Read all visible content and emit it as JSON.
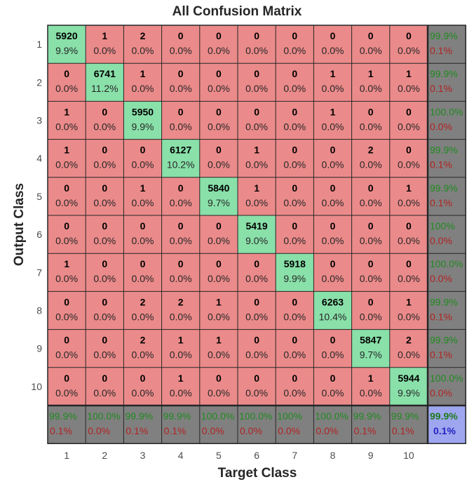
{
  "chart_data": {
    "type": "heatmap",
    "title": "All Confusion Matrix",
    "xlabel": "Target Class",
    "ylabel": "Output Class",
    "x_ticks": [
      "1",
      "2",
      "3",
      "4",
      "5",
      "6",
      "7",
      "8",
      "9",
      "10"
    ],
    "y_ticks": [
      "1",
      "2",
      "3",
      "4",
      "5",
      "6",
      "7",
      "8",
      "9",
      "10"
    ],
    "counts": [
      [
        5920,
        1,
        2,
        0,
        0,
        0,
        0,
        0,
        0,
        0
      ],
      [
        0,
        6741,
        1,
        0,
        0,
        0,
        0,
        1,
        1,
        1
      ],
      [
        1,
        0,
        5950,
        0,
        0,
        0,
        0,
        1,
        0,
        0
      ],
      [
        1,
        0,
        0,
        6127,
        0,
        1,
        0,
        0,
        2,
        0
      ],
      [
        0,
        0,
        1,
        0,
        5840,
        1,
        0,
        0,
        0,
        1
      ],
      [
        0,
        0,
        0,
        0,
        0,
        5419,
        0,
        0,
        0,
        0
      ],
      [
        1,
        0,
        0,
        0,
        0,
        0,
        5918,
        0,
        0,
        0
      ],
      [
        0,
        0,
        2,
        2,
        1,
        0,
        0,
        6263,
        0,
        1
      ],
      [
        0,
        0,
        2,
        1,
        1,
        0,
        0,
        0,
        5847,
        2
      ],
      [
        0,
        0,
        0,
        1,
        0,
        0,
        0,
        0,
        1,
        5944
      ]
    ],
    "percents": [
      [
        "9.9%",
        "0.0%",
        "0.0%",
        "0.0%",
        "0.0%",
        "0.0%",
        "0.0%",
        "0.0%",
        "0.0%",
        "0.0%"
      ],
      [
        "0.0%",
        "11.2%",
        "0.0%",
        "0.0%",
        "0.0%",
        "0.0%",
        "0.0%",
        "0.0%",
        "0.0%",
        "0.0%"
      ],
      [
        "0.0%",
        "0.0%",
        "9.9%",
        "0.0%",
        "0.0%",
        "0.0%",
        "0.0%",
        "0.0%",
        "0.0%",
        "0.0%"
      ],
      [
        "0.0%",
        "0.0%",
        "0.0%",
        "10.2%",
        "0.0%",
        "0.0%",
        "0.0%",
        "0.0%",
        "0.0%",
        "0.0%"
      ],
      [
        "0.0%",
        "0.0%",
        "0.0%",
        "0.0%",
        "9.7%",
        "0.0%",
        "0.0%",
        "0.0%",
        "0.0%",
        "0.0%"
      ],
      [
        "0.0%",
        "0.0%",
        "0.0%",
        "0.0%",
        "0.0%",
        "9.0%",
        "0.0%",
        "0.0%",
        "0.0%",
        "0.0%"
      ],
      [
        "0.0%",
        "0.0%",
        "0.0%",
        "0.0%",
        "0.0%",
        "0.0%",
        "9.9%",
        "0.0%",
        "0.0%",
        "0.0%"
      ],
      [
        "0.0%",
        "0.0%",
        "0.0%",
        "0.0%",
        "0.0%",
        "0.0%",
        "0.0%",
        "10.4%",
        "0.0%",
        "0.0%"
      ],
      [
        "0.0%",
        "0.0%",
        "0.0%",
        "0.0%",
        "0.0%",
        "0.0%",
        "0.0%",
        "0.0%",
        "9.7%",
        "0.0%"
      ],
      [
        "0.0%",
        "0.0%",
        "0.0%",
        "0.0%",
        "0.0%",
        "0.0%",
        "0.0%",
        "0.0%",
        "0.0%",
        "9.9%"
      ]
    ],
    "row_summary": [
      [
        "99.9%",
        "0.1%"
      ],
      [
        "99.9%",
        "0.1%"
      ],
      [
        "100.0%",
        "0.0%"
      ],
      [
        "99.9%",
        "0.1%"
      ],
      [
        "99.9%",
        "0.1%"
      ],
      [
        "100%",
        "0.0%"
      ],
      [
        "100.0%",
        "0.0%"
      ],
      [
        "99.9%",
        "0.1%"
      ],
      [
        "99.9%",
        "0.1%"
      ],
      [
        "100.0%",
        "0.0%"
      ]
    ],
    "col_summary": [
      [
        "99.9%",
        "0.1%"
      ],
      [
        "100.0%",
        "0.0%"
      ],
      [
        "99.9%",
        "0.1%"
      ],
      [
        "99.9%",
        "0.1%"
      ],
      [
        "100.0%",
        "0.0%"
      ],
      [
        "100.0%",
        "0.0%"
      ],
      [
        "100%",
        "0.0%"
      ],
      [
        "100.0%",
        "0.0%"
      ],
      [
        "99.9%",
        "0.1%"
      ],
      [
        "99.9%",
        "0.1%"
      ]
    ],
    "overall": [
      "99.9%",
      "0.1%"
    ],
    "colors": {
      "correct": "#89e0a9",
      "incorrect": "#eb8a8a",
      "summary": "#808080",
      "summary_text_correct": "#1f8a1f",
      "summary_text_wrong": "#b22222",
      "overall_bg": "#9ea6ef",
      "overall_correct_text": "#1f7a1f",
      "overall_wrong_text": "#2424c0",
      "grid": "#262626",
      "summary_border": "#404040"
    }
  }
}
